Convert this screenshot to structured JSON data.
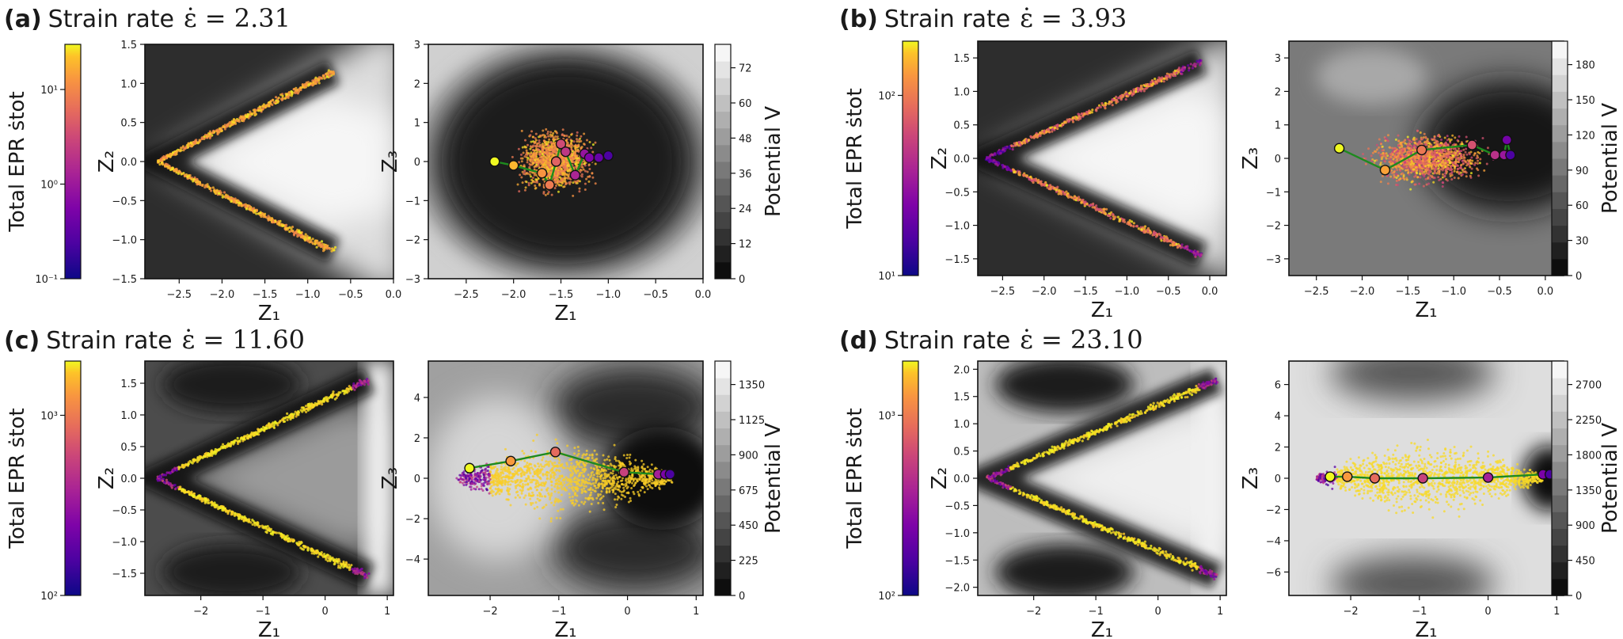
{
  "colors": {
    "traj_line": "#1e8a1e",
    "frame": "#111111",
    "grey_dark": "#141414",
    "grey_light": "#f4f4f4"
  },
  "chart_data": [
    {
      "id": "a",
      "type": "scatter",
      "panel_label": "(a)",
      "title_text": "Strain rate",
      "title_math": "ε̇ = 2.31",
      "epr_colorbar": {
        "label": "Total EPR ṡtot",
        "scale": "log",
        "range": [
          0.1,
          30
        ],
        "ticks": [
          "10⁻¹",
          "10⁰",
          "10¹"
        ],
        "tick_values": [
          0.1,
          1,
          10
        ]
      },
      "left": {
        "xlabel": "Z₁",
        "ylabel": "Z₂",
        "xlim": [
          -2.9,
          0.0
        ],
        "ylim": [
          -1.5,
          1.5
        ],
        "xticks": [
          -2.5,
          -2.0,
          -1.5,
          -1.0,
          -0.5,
          0.0
        ],
        "yticks": [
          -1.5,
          -1.0,
          -0.5,
          0.0,
          0.5,
          1.0,
          1.5
        ],
        "xtick_labels": [
          "−2.5",
          "−2.0",
          "−1.5",
          "−1.0",
          "−0.5",
          "0.0"
        ],
        "ytick_labels": [
          "−1.5",
          "−1.0",
          "−0.5",
          "0.0",
          "0.5",
          "1.0",
          "1.5"
        ],
        "v_shape": {
          "apex": [
            -2.75,
            0.0
          ],
          "upper_end": [
            -0.7,
            1.15
          ],
          "lower_end": [
            -0.7,
            -1.15
          ]
        },
        "grid": false
      },
      "right": {
        "xlabel": "Z₁",
        "ylabel": "Z₃",
        "xlim": [
          -2.9,
          0.0
        ],
        "ylim": [
          -3.0,
          3.0
        ],
        "xticks": [
          -2.5,
          -2.0,
          -1.5,
          -1.0,
          -0.5,
          0.0
        ],
        "yticks": [
          -3,
          -2,
          -1,
          0,
          1,
          2,
          3
        ],
        "xtick_labels": [
          "−2.5",
          "−2.0",
          "−1.5",
          "−1.0",
          "−0.5",
          "0.0"
        ],
        "ytick_labels": [
          "−3",
          "−2",
          "−1",
          "0",
          "1",
          "2",
          "3"
        ],
        "trajectory": {
          "x": [
            -2.2,
            -2.0,
            -1.7,
            -1.62,
            -1.55,
            -1.5,
            -1.45,
            -1.35,
            -1.25,
            -1.2,
            -1.1,
            -1.0
          ],
          "y": [
            0.0,
            -0.1,
            -0.3,
            -0.6,
            0.0,
            0.45,
            0.25,
            -0.35,
            0.2,
            0.1,
            0.1,
            0.15
          ]
        },
        "grid": false
      },
      "potential_colorbar": {
        "label": "Potential V",
        "range": [
          0,
          80
        ],
        "ticks": [
          "0",
          "12",
          "24",
          "36",
          "48",
          "60",
          "72"
        ],
        "tick_values": [
          0,
          12,
          24,
          36,
          48,
          60,
          72
        ]
      }
    },
    {
      "id": "b",
      "type": "scatter",
      "panel_label": "(b)",
      "title_text": "Strain rate",
      "title_math": "ε̇ = 3.93",
      "epr_colorbar": {
        "label": "Total EPR ṡtot",
        "scale": "log",
        "range": [
          10,
          200
        ],
        "ticks": [
          "10¹",
          "10²"
        ],
        "tick_values": [
          10,
          100
        ]
      },
      "left": {
        "xlabel": "Z₁",
        "ylabel": "Z₂",
        "xlim": [
          -2.8,
          0.2
        ],
        "ylim": [
          -1.75,
          1.75
        ],
        "xticks": [
          -2.5,
          -2.0,
          -1.5,
          -1.0,
          -0.5,
          0.0
        ],
        "yticks": [
          -1.5,
          -1.0,
          -0.5,
          0.0,
          0.5,
          1.0,
          1.5
        ],
        "xtick_labels": [
          "−2.5",
          "−2.0",
          "−1.5",
          "−1.0",
          "−0.5",
          "0.0"
        ],
        "ytick_labels": [
          "−1.5",
          "−1.0",
          "−0.5",
          "0.0",
          "0.5",
          "1.0",
          "1.5"
        ],
        "v_shape": {
          "apex": [
            -2.7,
            0.0
          ],
          "upper_end": [
            -0.1,
            1.45
          ],
          "lower_end": [
            -0.1,
            -1.45
          ]
        },
        "grid": false
      },
      "right": {
        "xlabel": "Z₁",
        "ylabel": "Z₃",
        "xlim": [
          -2.8,
          0.2
        ],
        "ylim": [
          -3.5,
          3.5
        ],
        "xticks": [
          -2.5,
          -2.0,
          -1.5,
          -1.0,
          -0.5,
          0.0
        ],
        "yticks": [
          -3,
          -2,
          -1,
          0,
          1,
          2,
          3
        ],
        "xtick_labels": [
          "−2.5",
          "−2.0",
          "−1.5",
          "−1.0",
          "−0.5",
          "0.0"
        ],
        "ytick_labels": [
          "−3",
          "−2",
          "−1",
          "0",
          "1",
          "2",
          "3"
        ],
        "trajectory": {
          "x": [
            -2.25,
            -1.75,
            -1.35,
            -0.8,
            -0.55,
            -0.45,
            -0.42,
            -0.38
          ],
          "y": [
            0.3,
            -0.35,
            0.25,
            0.4,
            0.1,
            0.1,
            0.55,
            0.1
          ]
        },
        "grid": false
      },
      "potential_colorbar": {
        "label": "Potential V",
        "range": [
          0,
          200
        ],
        "ticks": [
          "0",
          "30",
          "60",
          "90",
          "120",
          "150",
          "180"
        ],
        "tick_values": [
          0,
          30,
          60,
          90,
          120,
          150,
          180
        ]
      }
    },
    {
      "id": "c",
      "type": "scatter",
      "panel_label": "(c)",
      "title_text": "Strain rate",
      "title_math": "ε̇ = 11.60",
      "epr_colorbar": {
        "label": "Total EPR ṡtot",
        "scale": "log",
        "range": [
          100,
          2000
        ],
        "ticks": [
          "10²",
          "10³"
        ],
        "tick_values": [
          100,
          1000
        ]
      },
      "left": {
        "xlabel": "Z₁",
        "ylabel": "Z₂",
        "xlim": [
          -2.9,
          1.1
        ],
        "ylim": [
          -1.85,
          1.85
        ],
        "xticks": [
          -2,
          -1,
          0,
          1
        ],
        "yticks": [
          -1.5,
          -1.0,
          -0.5,
          0.0,
          0.5,
          1.0,
          1.5
        ],
        "xtick_labels": [
          "−2",
          "−1",
          "0",
          "1"
        ],
        "ytick_labels": [
          "−1.5",
          "−1.0",
          "−0.5",
          "0.0",
          "0.5",
          "1.0",
          "1.5"
        ],
        "v_shape": {
          "apex": [
            -2.7,
            0.0
          ],
          "upper_end": [
            0.7,
            1.55
          ],
          "lower_end": [
            0.7,
            -1.55
          ]
        },
        "grid": false
      },
      "right": {
        "xlabel": "Z₁",
        "ylabel": "Z₃",
        "xlim": [
          -2.9,
          1.1
        ],
        "ylim": [
          -5.8,
          5.8
        ],
        "xticks": [
          -2,
          -1,
          0,
          1
        ],
        "yticks": [
          -4,
          -2,
          0,
          2,
          4
        ],
        "xtick_labels": [
          "−2",
          "−1",
          "0",
          "1"
        ],
        "ytick_labels": [
          "−4",
          "−2",
          "0",
          "2",
          "4"
        ],
        "trajectory": {
          "x": [
            -2.3,
            -1.7,
            -1.05,
            -0.05,
            0.45,
            0.55,
            0.62
          ],
          "y": [
            0.5,
            0.85,
            1.3,
            0.3,
            0.2,
            0.2,
            0.2
          ]
        },
        "grid": false
      },
      "potential_colorbar": {
        "label": "Potential V",
        "range": [
          0,
          1500
        ],
        "ticks": [
          "0",
          "225",
          "450",
          "675",
          "900",
          "1125",
          "1350"
        ],
        "tick_values": [
          0,
          225,
          450,
          675,
          900,
          1125,
          1350
        ]
      }
    },
    {
      "id": "d",
      "type": "scatter",
      "panel_label": "(d)",
      "title_text": "Strain rate",
      "title_math": "ε̇ = 23.10",
      "epr_colorbar": {
        "label": "Total EPR ṡtot",
        "scale": "log",
        "range": [
          100,
          2000
        ],
        "ticks": [
          "10²",
          "10³"
        ],
        "tick_values": [
          100,
          1000
        ]
      },
      "left": {
        "xlabel": "Z₁",
        "ylabel": "Z₂",
        "xlim": [
          -2.9,
          1.1
        ],
        "ylim": [
          -2.15,
          2.15
        ],
        "xticks": [
          -2,
          -1,
          0,
          1
        ],
        "yticks": [
          -2.0,
          -1.5,
          -1.0,
          -0.5,
          0.0,
          0.5,
          1.0,
          1.5,
          2.0
        ],
        "xtick_labels": [
          "−2",
          "−1",
          "0",
          "1"
        ],
        "ytick_labels": [
          "−2.0",
          "−1.5",
          "−1.0",
          "−0.5",
          "0.0",
          "0.5",
          "1.0",
          "1.5",
          "2.0"
        ],
        "v_shape": {
          "apex": [
            -2.75,
            0.0
          ],
          "upper_end": [
            0.95,
            1.8
          ],
          "lower_end": [
            0.95,
            -1.8
          ]
        },
        "grid": false
      },
      "right": {
        "xlabel": "Z₁",
        "ylabel": "Z₃",
        "xlim": [
          -2.9,
          1.1
        ],
        "ylim": [
          -7.5,
          7.5
        ],
        "xticks": [
          -2,
          -1,
          0,
          1
        ],
        "yticks": [
          -6,
          -4,
          -2,
          0,
          2,
          4,
          6
        ],
        "xtick_labels": [
          "−2",
          "−1",
          "0",
          "1"
        ],
        "ytick_labels": [
          "−6",
          "−4",
          "−2",
          "0",
          "2",
          "4",
          "6"
        ],
        "trajectory": {
          "x": [
            -2.3,
            -2.05,
            -1.65,
            -0.95,
            0.0,
            0.8,
            0.9
          ],
          "y": [
            0.1,
            0.1,
            0.0,
            0.0,
            0.05,
            0.25,
            0.25
          ]
        },
        "grid": false
      },
      "potential_colorbar": {
        "label": "Potential V",
        "range": [
          0,
          3000
        ],
        "ticks": [
          "0",
          "450",
          "900",
          "1350",
          "1800",
          "2250",
          "2700"
        ],
        "tick_values": [
          0,
          450,
          900,
          1350,
          1800,
          2250,
          2700
        ]
      }
    }
  ]
}
